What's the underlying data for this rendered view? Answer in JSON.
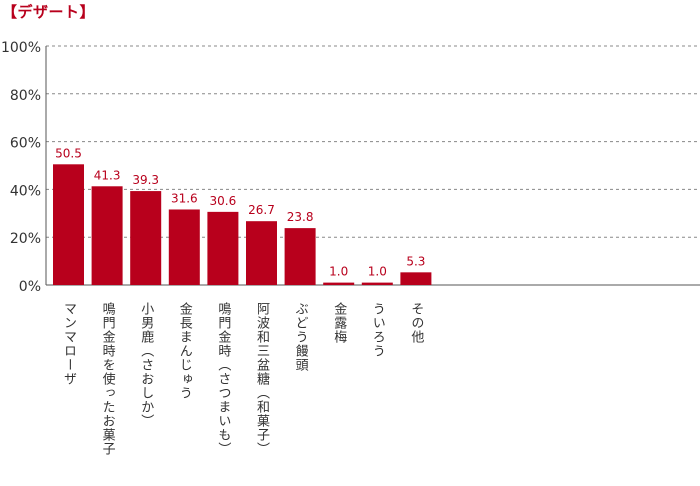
{
  "page": {
    "title": "【デザート】"
  },
  "chart_data": {
    "type": "bar",
    "title": "【デザート】",
    "categories": [
      "マンマローザ",
      "鳴門金時を使ったお菓子",
      "小男鹿（さおしか）",
      "金長まんじゅう",
      "鳴門金時（さつまいも）",
      "阿波和三盆糖（和菓子）",
      "ぶどう饅頭",
      "金露梅",
      "ういろう",
      "その他"
    ],
    "values": [
      50.5,
      41.3,
      39.3,
      31.6,
      30.6,
      26.7,
      23.8,
      1.0,
      1.0,
      5.3
    ],
    "value_labels": [
      "50.5",
      "41.3",
      "39.3",
      "31.6",
      "30.6",
      "26.7",
      "23.8",
      "1.0",
      "1.0",
      "5.3"
    ],
    "y_ticks": [
      "0%",
      "20%",
      "40%",
      "60%",
      "80%",
      "100%"
    ],
    "ylim": [
      0,
      100
    ],
    "grid": true,
    "bar_color": "#b8001c",
    "label_color": "#b8001c",
    "xlabel": "",
    "ylabel": ""
  }
}
